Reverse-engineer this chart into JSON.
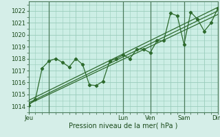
{
  "xlabel": "Pression niveau de la mer( hPa )",
  "bg_color": "#d5eee8",
  "plot_bg_color": "#cceee5",
  "grid_color": "#99ccbb",
  "line_color": "#2d6a2d",
  "vline_color": "#4a7a5a",
  "ylim": [
    1013.5,
    1022.8
  ],
  "yticks": [
    1014,
    1015,
    1016,
    1017,
    1018,
    1019,
    1020,
    1021,
    1022
  ],
  "xtick_labels": [
    "Jeu",
    "",
    "Lun",
    "Ven",
    "",
    "Sam",
    "",
    "Dim"
  ],
  "xtick_positions": [
    0,
    7,
    14,
    18,
    21,
    23,
    26,
    28
  ],
  "vline_positions": [
    3,
    14,
    18,
    23,
    28
  ],
  "main_x": [
    0,
    1,
    2,
    3,
    4,
    5,
    6,
    7,
    8,
    9,
    10,
    11,
    12,
    13,
    14,
    15,
    16,
    17,
    18,
    19,
    20,
    21,
    22,
    23,
    24,
    25,
    26,
    27,
    28
  ],
  "main_y": [
    1014.1,
    1014.6,
    1017.2,
    1017.8,
    1018.0,
    1017.7,
    1017.3,
    1018.0,
    1017.5,
    1015.8,
    1015.75,
    1016.1,
    1017.8,
    1018.0,
    1018.3,
    1018.0,
    1018.8,
    1018.8,
    1018.5,
    1019.5,
    1019.5,
    1021.8,
    1021.6,
    1019.2,
    1021.9,
    1021.3,
    1020.3,
    1021.0,
    1022.2
  ],
  "trend1_x": [
    0,
    28
  ],
  "trend1_y": [
    1014.2,
    1021.7
  ],
  "trend2_x": [
    0,
    28
  ],
  "trend2_y": [
    1014.3,
    1022.0
  ],
  "trend3_x": [
    0,
    28
  ],
  "trend3_y": [
    1014.5,
    1022.3
  ],
  "figsize": [
    3.2,
    2.0
  ],
  "dpi": 100
}
